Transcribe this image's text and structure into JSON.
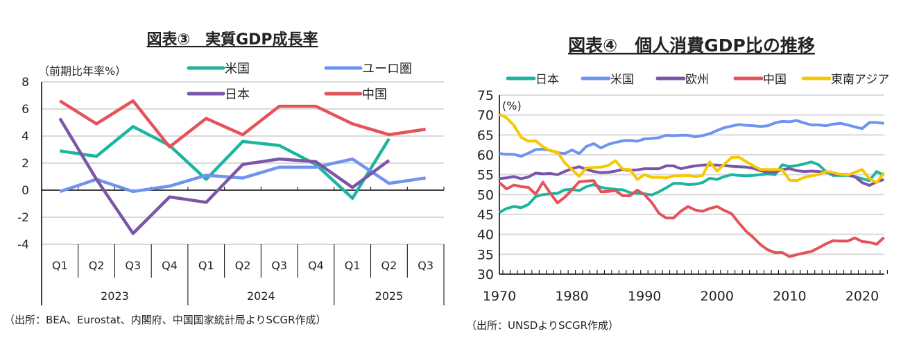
{
  "chart_data": [
    {
      "type": "line",
      "title": "図表③　実質GDP成長率",
      "ylabel": "（前期比年率%）",
      "ylim": [
        -4,
        8
      ],
      "yticks": [
        -4,
        -2,
        0,
        2,
        4,
        6,
        8
      ],
      "grid": true,
      "legend": "top",
      "categories": [
        "Q1",
        "Q2",
        "Q3",
        "Q4",
        "Q1",
        "Q2",
        "Q3",
        "Q4",
        "Q1",
        "Q2",
        "Q3"
      ],
      "years": [
        "2023",
        "2024",
        "2025"
      ],
      "series": [
        {
          "name": "米国",
          "color": "#1db5a0",
          "values": [
            2.9,
            2.5,
            4.7,
            3.3,
            0.8,
            3.6,
            3.3,
            1.9,
            -0.6,
            3.8,
            null
          ]
        },
        {
          "name": "ユーロ圏",
          "color": "#6f93f0",
          "values": [
            -0.1,
            0.8,
            -0.1,
            0.3,
            1.1,
            0.9,
            1.7,
            1.7,
            2.3,
            0.5,
            0.9
          ]
        },
        {
          "name": "日本",
          "color": "#7b55a8",
          "values": [
            5.3,
            0.8,
            -3.2,
            -0.5,
            -0.9,
            1.9,
            2.3,
            2.1,
            0.2,
            2.2,
            null
          ]
        },
        {
          "name": "中国",
          "color": "#e5525a",
          "values": [
            6.6,
            4.9,
            6.6,
            3.2,
            5.3,
            4.1,
            6.2,
            6.2,
            4.9,
            4.1,
            4.5
          ]
        }
      ],
      "source": "（出所：BEA、Eurostat、内閣府、中国国家統計局よりSCGR作成）"
    },
    {
      "type": "line",
      "title": "図表④　個人消費GDP比の推移",
      "ylabel": "(%)",
      "ylim": [
        30,
        75
      ],
      "yticks": [
        30,
        35,
        40,
        45,
        50,
        55,
        60,
        65,
        70,
        75
      ],
      "xticks": [
        1970,
        1980,
        1990,
        2000,
        2010,
        2020
      ],
      "grid": true,
      "legend": "top",
      "x_start": 1970,
      "series": [
        {
          "name": "日本",
          "color": "#1db5a0",
          "values": [
            45.5,
            46.5,
            47,
            46.7,
            47.5,
            49.5,
            50,
            50.2,
            50.3,
            51.2,
            51.3,
            51,
            52,
            52.5,
            51.8,
            51.5,
            51.3,
            51.2,
            50.5,
            50.3,
            50.2,
            49.9,
            50.7,
            51.7,
            52.8,
            52.8,
            52.5,
            52.6,
            53,
            54.1,
            53.8,
            54.5,
            55,
            54.8,
            54.7,
            54.8,
            55,
            55.2,
            55,
            57.5,
            57,
            57.3,
            57.7,
            58.2,
            57.5,
            55.8,
            54.8,
            54.8,
            54.8,
            54.5,
            54,
            53.5,
            55.8,
            54.8
          ]
        },
        {
          "name": "米国",
          "color": "#6f93f0",
          "values": [
            60.3,
            60.1,
            60.1,
            59.6,
            60.4,
            61.3,
            61.4,
            61.1,
            60.5,
            60.3,
            61.2,
            60.3,
            62.1,
            62.8,
            61.7,
            62.6,
            63.1,
            63.5,
            63.6,
            63.4,
            64,
            64.1,
            64.3,
            64.9,
            64.8,
            64.9,
            64.9,
            64.5,
            64.8,
            65.3,
            66.1,
            66.8,
            67.2,
            67.6,
            67.4,
            67.3,
            67.1,
            67.3,
            68,
            68.4,
            68.3,
            68.6,
            68,
            67.5,
            67.5,
            67.3,
            67.7,
            67.9,
            67.5,
            67,
            66.6,
            68.1,
            68.1,
            67.9
          ]
        },
        {
          "name": "欧州",
          "color": "#7b55a8",
          "values": [
            54,
            54.2,
            54.5,
            54,
            54.4,
            55.4,
            55.2,
            55.3,
            55,
            55.8,
            56.5,
            57,
            56.3,
            55.8,
            55.5,
            55.6,
            55.9,
            56.3,
            56.1,
            56.2,
            56.5,
            56.5,
            56.5,
            57.2,
            57.2,
            56.5,
            56.9,
            57.2,
            57.4,
            57.5,
            57.4,
            57.3,
            57.1,
            57,
            56.9,
            56.6,
            56,
            55.6,
            55.6,
            56.3,
            56.5,
            56,
            55.8,
            55.9,
            55.8,
            55.6,
            55.3,
            55.1,
            55,
            54.5,
            53,
            52.3,
            53.2,
            53.8
          ]
        },
        {
          "name": "中国",
          "color": "#e5525a",
          "values": [
            53,
            51.4,
            52.4,
            52,
            51.8,
            50.1,
            53.1,
            50.4,
            47.9,
            49.3,
            51.2,
            53.2,
            53.4,
            53.5,
            50.7,
            50.8,
            51,
            49.7,
            49.7,
            51.1,
            50,
            48,
            45.3,
            44.1,
            44.1,
            45.8,
            47,
            46.1,
            45.8,
            46.5,
            47,
            46,
            45.2,
            42.9,
            40.8,
            39.2,
            37.4,
            36.1,
            35.4,
            35.4,
            34.4,
            34.9,
            35.3,
            35.7,
            36.6,
            37.6,
            38.4,
            38.3,
            38.3,
            39.1,
            38.2,
            38,
            37.5,
            39.2
          ]
        },
        {
          "name": "東南アジア",
          "color": "#f7c800",
          "values": [
            70.2,
            69.3,
            67.4,
            64.4,
            63.4,
            63.5,
            62,
            61,
            60.7,
            58,
            56.3,
            54.6,
            56.7,
            56.8,
            56.9,
            57.3,
            58.5,
            56.4,
            56.3,
            53.8,
            55,
            54.3,
            54.3,
            54.2,
            54.7,
            54.7,
            54.8,
            54.5,
            54.8,
            58.2,
            55.9,
            57.6,
            59.3,
            59.4,
            58.3,
            57.2,
            56.3,
            56.3,
            56.3,
            56.2,
            53.6,
            53.5,
            54.3,
            54.7,
            55,
            55.8,
            55.5,
            55.1,
            54.9,
            55.6,
            56.3,
            54,
            53,
            55.5
          ]
        }
      ],
      "source": "（出所：UNSDよりSCGR作成）"
    }
  ]
}
